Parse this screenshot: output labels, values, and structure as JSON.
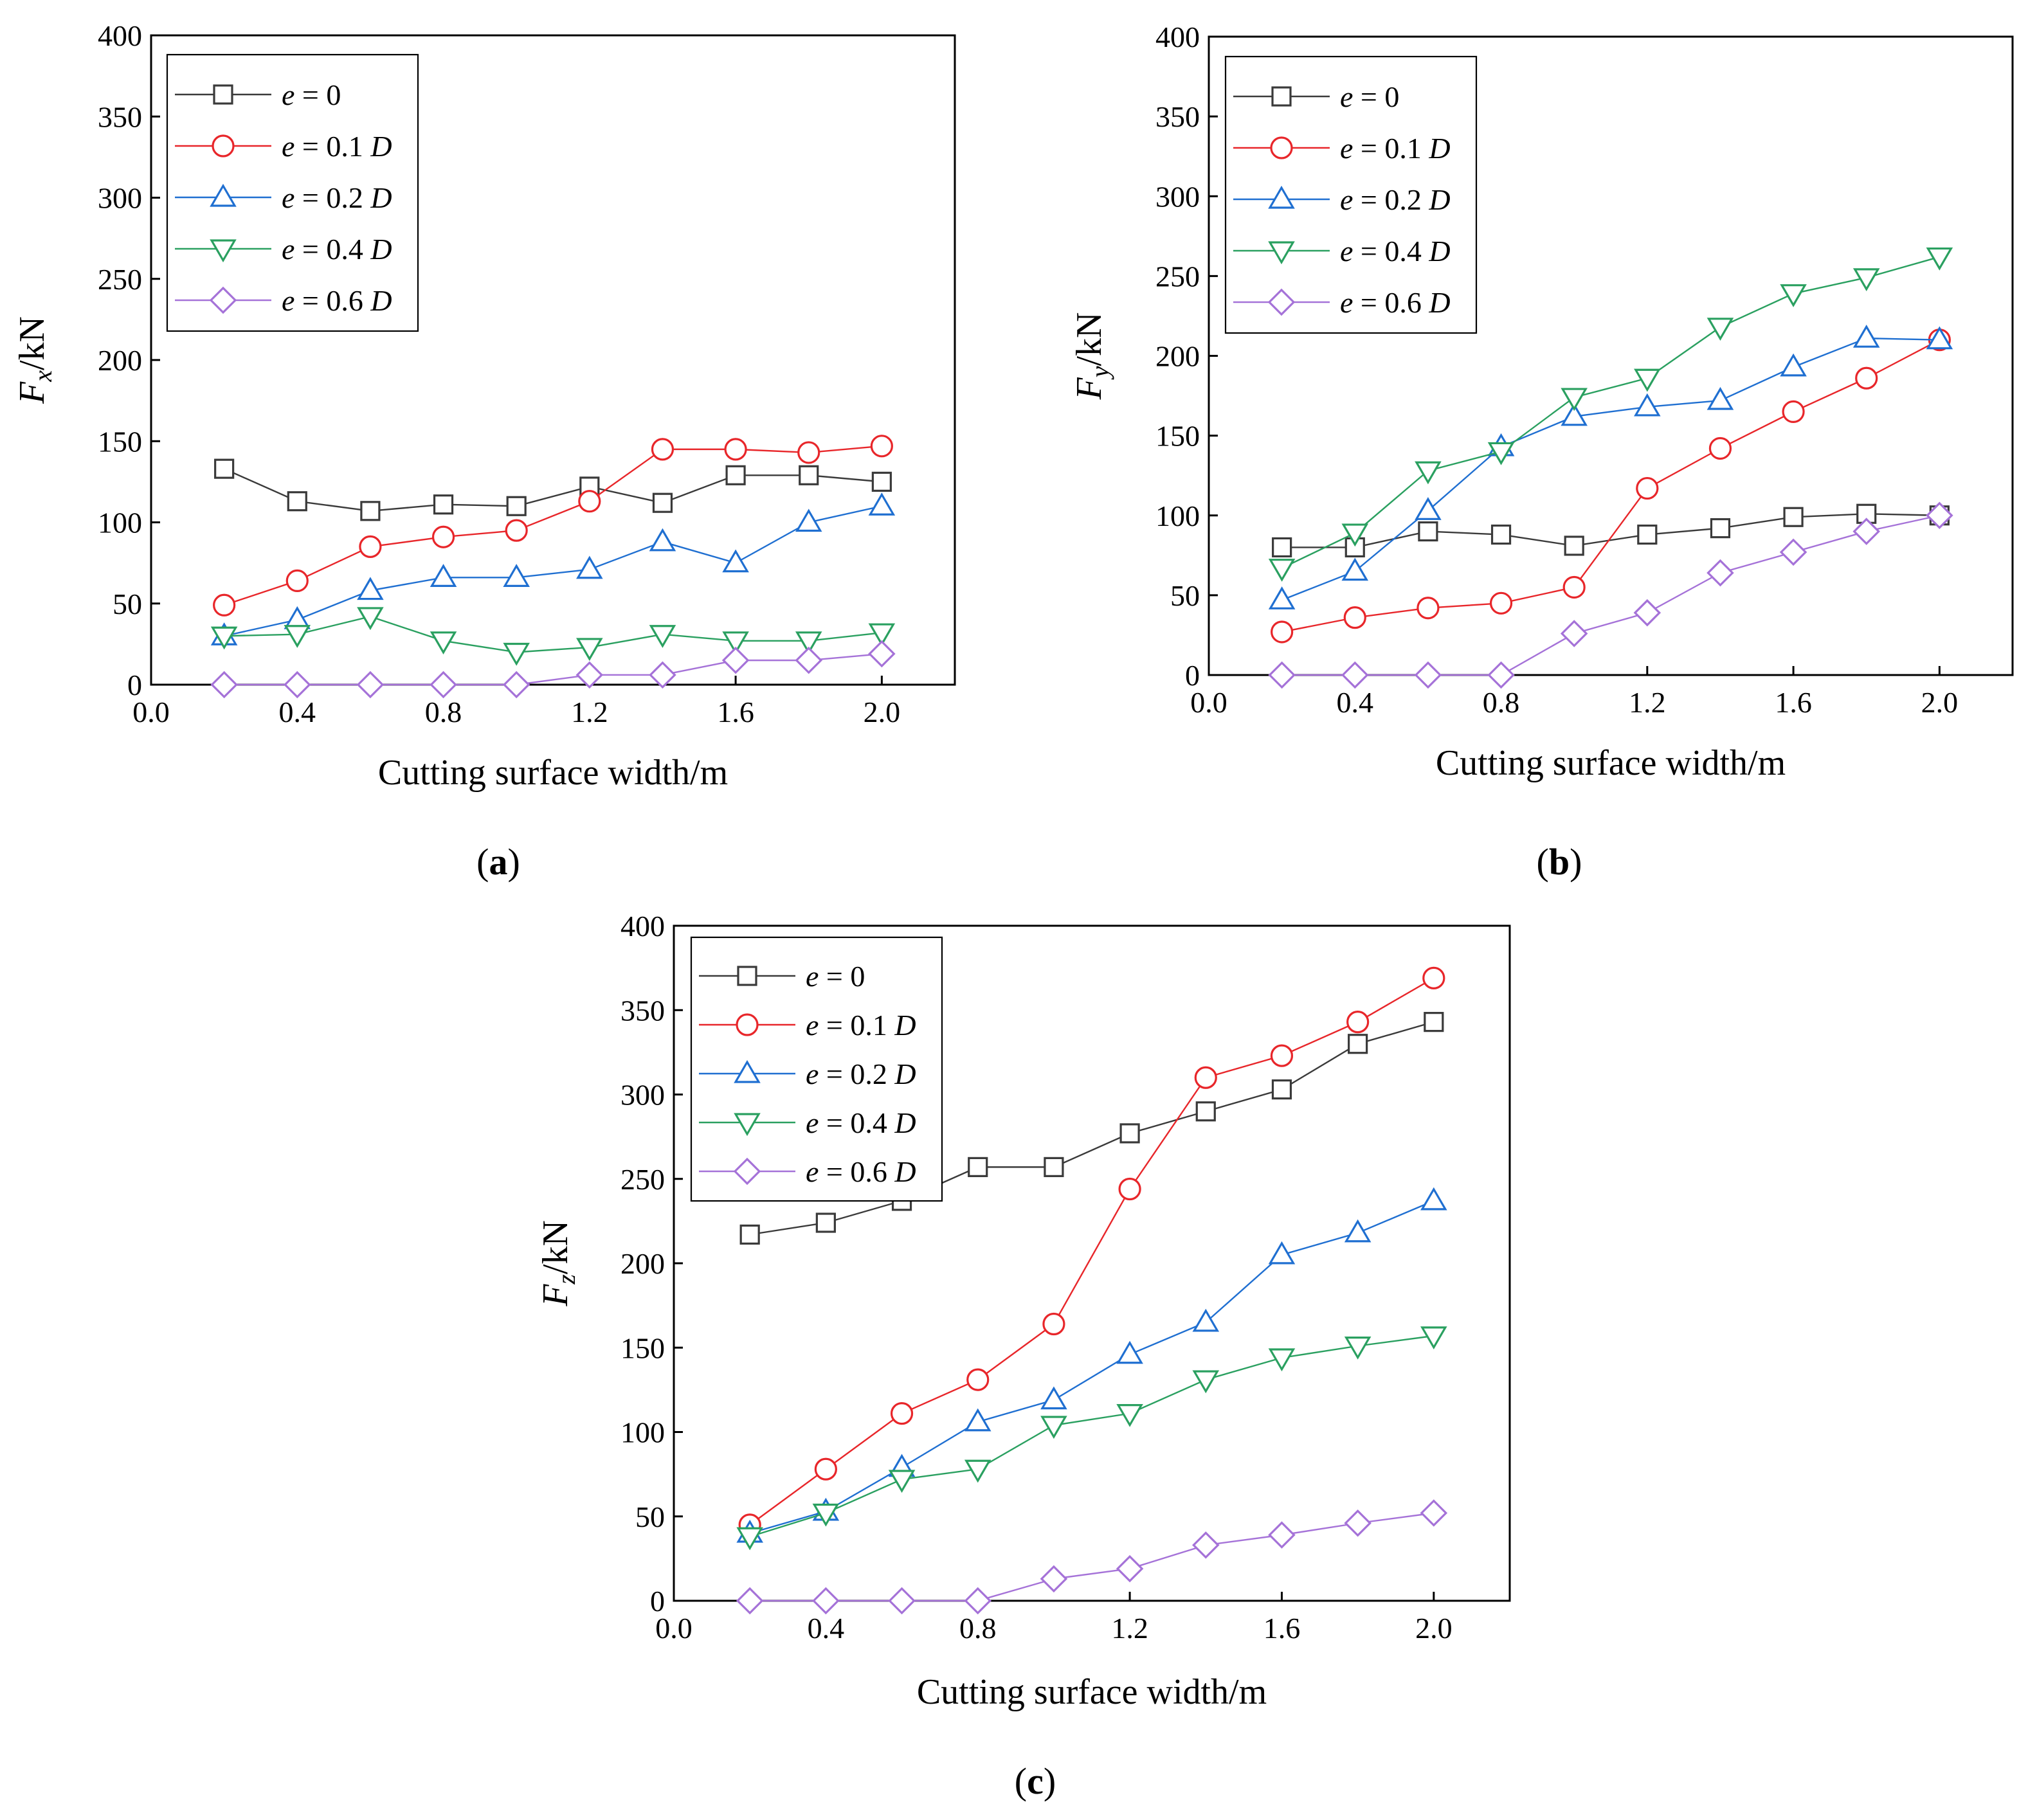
{
  "figure": {
    "colors": {
      "e0": "#3a3a3a",
      "e01": "#e8262a",
      "e02": "#1f6fd1",
      "e04": "#2aa060",
      "e06": "#a572d8"
    }
  },
  "chart_data": [
    {
      "type": "line",
      "panel_label": "a",
      "ylabel_main": "F",
      "ylabel_sub": "x",
      "ylabel_unit": "/kN",
      "xlabel": "Cutting surface width/m",
      "xlim": [
        0.0,
        2.2
      ],
      "ylim": [
        0,
        400
      ],
      "xticks": [
        "0.0",
        "0.4",
        "0.8",
        "1.2",
        "1.6",
        "2.0"
      ],
      "yticks": [
        "0",
        "50",
        "100",
        "150",
        "200",
        "250",
        "300",
        "350",
        "400"
      ],
      "legend_position": "top-left",
      "x": [
        0.2,
        0.4,
        0.6,
        0.8,
        1.0,
        1.2,
        1.4,
        1.6,
        1.8,
        2.0
      ],
      "series": [
        {
          "key": "e0",
          "name_italic": "e",
          "name_rest": " = 0",
          "name_italic2": "",
          "marker": "square",
          "values": [
            133,
            113,
            107,
            111,
            110,
            122,
            112,
            129,
            129,
            125
          ]
        },
        {
          "key": "e01",
          "name_italic": "e",
          "name_rest": " = 0.1 ",
          "name_italic2": "D",
          "marker": "circle",
          "values": [
            49,
            64,
            85,
            91,
            95,
            113,
            145,
            145,
            143,
            147
          ]
        },
        {
          "key": "e02",
          "name_italic": "e",
          "name_rest": " = 0.2 ",
          "name_italic2": "D",
          "marker": "triangle-up",
          "values": [
            30,
            40,
            58,
            66,
            66,
            71,
            88,
            75,
            100,
            110
          ]
        },
        {
          "key": "e04",
          "name_italic": "e",
          "name_rest": " = 0.4 ",
          "name_italic2": "D",
          "marker": "triangle-down",
          "values": [
            30,
            31,
            42,
            27,
            20,
            23,
            31,
            27,
            27,
            32
          ]
        },
        {
          "key": "e06",
          "name_italic": "e",
          "name_rest": " = 0.6 ",
          "name_italic2": "D",
          "marker": "diamond",
          "values": [
            0,
            0,
            0,
            0,
            0,
            6,
            6,
            15,
            15,
            19
          ]
        }
      ]
    },
    {
      "type": "line",
      "panel_label": "b",
      "ylabel_main": "F",
      "ylabel_sub": "y",
      "ylabel_unit": "/kN",
      "xlabel": "Cutting surface width/m",
      "xlim": [
        0.0,
        2.2
      ],
      "ylim": [
        0,
        400
      ],
      "xticks": [
        "0.0",
        "0.4",
        "0.8",
        "1.2",
        "1.6",
        "2.0"
      ],
      "yticks": [
        "0",
        "50",
        "100",
        "150",
        "200",
        "250",
        "300",
        "350",
        "400"
      ],
      "legend_position": "top-left",
      "x": [
        0.2,
        0.4,
        0.6,
        0.8,
        1.0,
        1.2,
        1.4,
        1.6,
        1.8,
        2.0
      ],
      "series": [
        {
          "key": "e0",
          "name_italic": "e",
          "name_rest": " = 0",
          "name_italic2": "",
          "marker": "square",
          "values": [
            80,
            80,
            90,
            88,
            81,
            88,
            92,
            99,
            101,
            100
          ]
        },
        {
          "key": "e01",
          "name_italic": "e",
          "name_rest": " = 0.1 ",
          "name_italic2": "D",
          "marker": "circle",
          "values": [
            27,
            36,
            42,
            45,
            55,
            117,
            142,
            165,
            186,
            210
          ]
        },
        {
          "key": "e02",
          "name_italic": "e",
          "name_rest": " = 0.2 ",
          "name_italic2": "D",
          "marker": "triangle-up",
          "values": [
            47,
            65,
            103,
            143,
            162,
            168,
            172,
            193,
            211,
            210
          ]
        },
        {
          "key": "e04",
          "name_italic": "e",
          "name_rest": " = 0.4 ",
          "name_italic2": "D",
          "marker": "triangle-down",
          "values": [
            67,
            89,
            128,
            140,
            174,
            186,
            218,
            239,
            249,
            262
          ]
        },
        {
          "key": "e06",
          "name_italic": "e",
          "name_rest": " = 0.6 ",
          "name_italic2": "D",
          "marker": "diamond",
          "values": [
            0,
            0,
            0,
            0,
            26,
            39,
            64,
            77,
            90,
            100
          ]
        }
      ]
    },
    {
      "type": "line",
      "panel_label": "c",
      "ylabel_main": "F",
      "ylabel_sub": "z",
      "ylabel_unit": "/kN",
      "xlabel": "Cutting surface width/m",
      "xlim": [
        0.0,
        2.2
      ],
      "ylim": [
        0,
        400
      ],
      "xticks": [
        "0.0",
        "0.4",
        "0.8",
        "1.2",
        "1.6",
        "2.0"
      ],
      "yticks": [
        "0",
        "50",
        "100",
        "150",
        "200",
        "250",
        "300",
        "350",
        "400"
      ],
      "legend_position": "top-left",
      "x": [
        0.2,
        0.4,
        0.6,
        0.8,
        1.0,
        1.2,
        1.4,
        1.6,
        1.8,
        2.0
      ],
      "series": [
        {
          "key": "e0",
          "name_italic": "e",
          "name_rest": " = 0",
          "name_italic2": "",
          "marker": "square",
          "values": [
            217,
            224,
            237,
            257,
            257,
            277,
            290,
            303,
            330,
            343
          ]
        },
        {
          "key": "e01",
          "name_italic": "e",
          "name_rest": " = 0.1 ",
          "name_italic2": "D",
          "marker": "circle",
          "values": [
            45,
            78,
            111,
            131,
            164,
            244,
            310,
            323,
            343,
            369
          ]
        },
        {
          "key": "e02",
          "name_italic": "e",
          "name_rest": " = 0.2 ",
          "name_italic2": "D",
          "marker": "triangle-up",
          "values": [
            40,
            53,
            79,
            106,
            119,
            146,
            165,
            205,
            218,
            237
          ]
        },
        {
          "key": "e04",
          "name_italic": "e",
          "name_rest": " = 0.4 ",
          "name_italic2": "D",
          "marker": "triangle-down",
          "values": [
            38,
            52,
            72,
            78,
            104,
            111,
            131,
            144,
            151,
            157
          ]
        },
        {
          "key": "e06",
          "name_italic": "e",
          "name_rest": " = 0.6 ",
          "name_italic2": "D",
          "marker": "diamond",
          "values": [
            0,
            0,
            0,
            0,
            13,
            19,
            33,
            39,
            46,
            52
          ]
        }
      ]
    }
  ]
}
